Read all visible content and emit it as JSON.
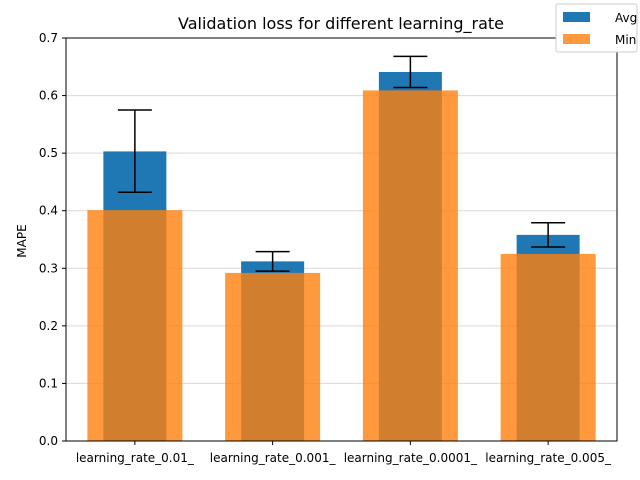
{
  "chart_data": {
    "type": "bar",
    "title": "Validation loss for different learning_rate",
    "xlabel": "",
    "ylabel": "MAPE",
    "categories": [
      "learning_rate_0.01_",
      "learning_rate_0.001_",
      "learning_rate_0.0001_",
      "learning_rate_0.005_"
    ],
    "series": [
      {
        "name": "Avg",
        "color": "#1f77b4",
        "values": [
          0.503,
          0.312,
          0.641,
          0.358
        ],
        "error_low": [
          0.432,
          0.295,
          0.614,
          0.337
        ],
        "error_high": [
          0.575,
          0.329,
          0.668,
          0.379
        ]
      },
      {
        "name": "Min",
        "color": "#ff7f0e",
        "opacity": 0.8,
        "values": [
          0.401,
          0.292,
          0.609,
          0.325
        ]
      }
    ],
    "ylim": [
      0,
      0.7
    ],
    "yticks": [
      "0.0",
      "0.1",
      "0.2",
      "0.3",
      "0.4",
      "0.5",
      "0.6",
      "0.7"
    ],
    "ytick_values": [
      0,
      0.1,
      0.2,
      0.3,
      0.4,
      0.5,
      0.6,
      0.7
    ],
    "grid": "horizontal",
    "legend_position": "top-right"
  }
}
